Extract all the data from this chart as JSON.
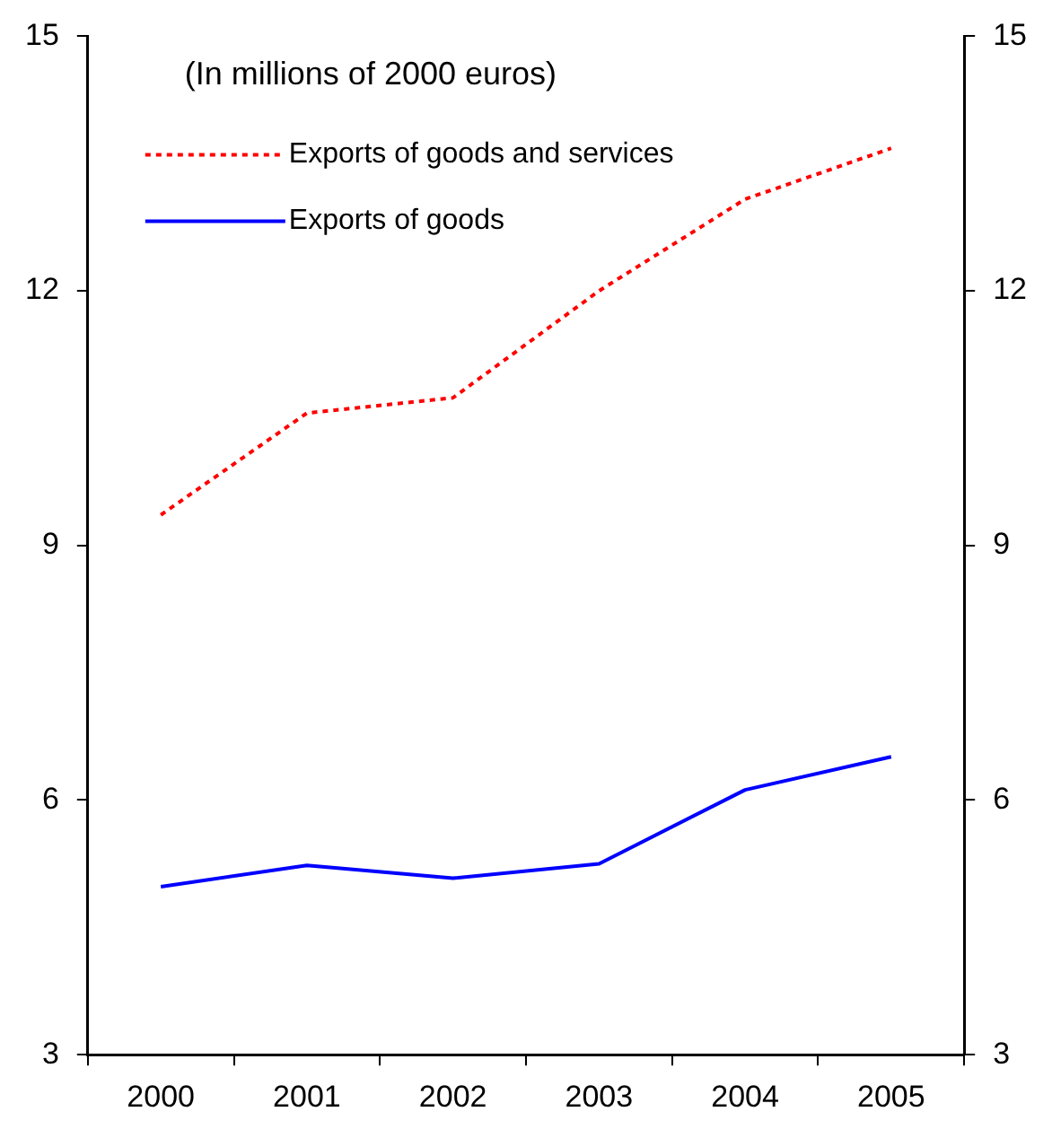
{
  "chart_data": {
    "type": "line",
    "subtitle": "(In millions of 2000 euros)",
    "categories": [
      "2000",
      "2001",
      "2002",
      "2003",
      "2004",
      "2005"
    ],
    "series": [
      {
        "name": "Exports of goods and services",
        "color": "#ff0000",
        "line_style": "dotted",
        "values": [
          9.36,
          10.56,
          10.74,
          12.0,
          13.08,
          13.68
        ]
      },
      {
        "name": "Exports of goods",
        "color": "#0000ff",
        "line_style": "solid",
        "values": [
          4.98,
          5.23,
          5.08,
          5.25,
          6.12,
          6.51
        ]
      }
    ],
    "ylim": [
      3,
      15
    ],
    "yticks": [
      3,
      6,
      9,
      12,
      15
    ],
    "y2lim": [
      3,
      15
    ],
    "y2ticks": [
      3,
      6,
      9,
      12,
      15
    ],
    "grid": false,
    "legend": "top left",
    "marker": "none"
  }
}
